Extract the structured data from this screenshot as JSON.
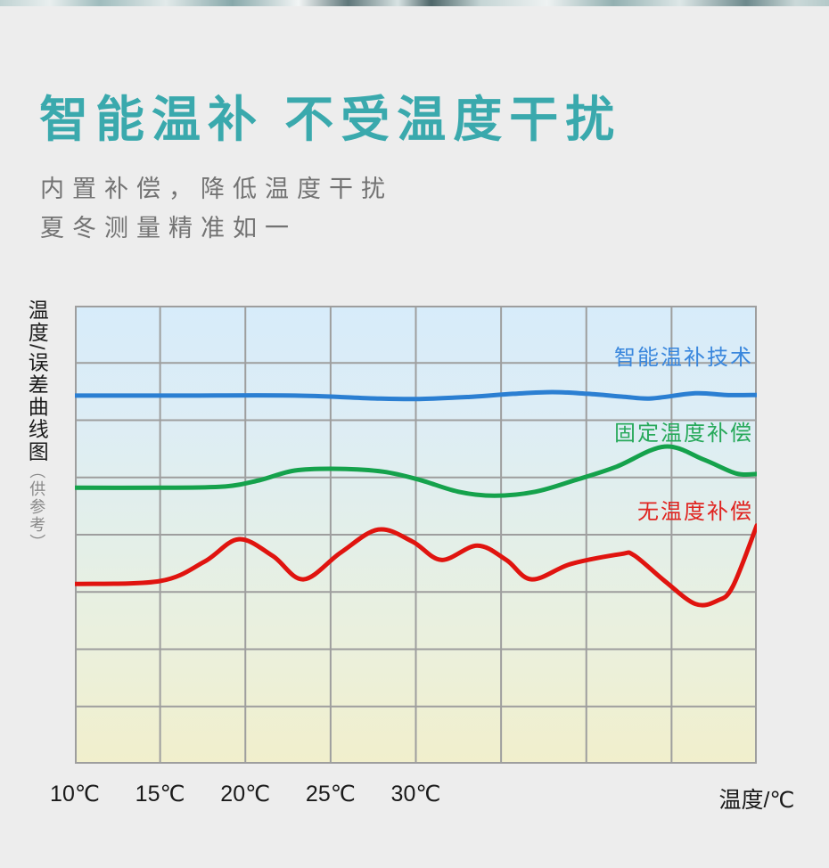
{
  "header": {
    "title": "智能温补 不受温度干扰",
    "title_color": "#3aa9ad",
    "subtitle_line1": "内置补偿，降低温度干扰",
    "subtitle_line2": "夏冬测量精准如一",
    "subtitle_color": "#737373"
  },
  "chart_data": {
    "type": "line",
    "title": "",
    "ylabel": "温度/误差曲线图",
    "ylabel_note": "（供参考）",
    "xlabel": "温度/℃",
    "x_tick_labels": [
      "10℃",
      "15℃",
      "20℃",
      "25℃",
      "30℃"
    ],
    "x_tick_values": [
      10,
      15,
      20,
      25,
      30
    ],
    "x_range": [
      10,
      50
    ],
    "y_range": [
      0,
      8
    ],
    "grid": {
      "cols": 8,
      "rows": 8,
      "color": "#9e9e9e",
      "line_width": 2,
      "on": true
    },
    "background_gradient": [
      "#d7ecfa",
      "#ddedf5",
      "#e3efe9",
      "#ebf0dc",
      "#f1efcc"
    ],
    "legend_position": "inside-right",
    "series": [
      {
        "name": "智能温补技术",
        "color": "#2b7fd2",
        "label_color": "#3a87dd",
        "points": [
          [
            10,
            6.43
          ],
          [
            16.1,
            6.43
          ],
          [
            22.9,
            6.43
          ],
          [
            27.6,
            6.38
          ],
          [
            30.2,
            6.37
          ],
          [
            33.3,
            6.41
          ],
          [
            35.7,
            6.46
          ],
          [
            38,
            6.49
          ],
          [
            40.1,
            6.46
          ],
          [
            42.2,
            6.41
          ],
          [
            43.8,
            6.38
          ],
          [
            46.4,
            6.47
          ],
          [
            48.2,
            6.44
          ],
          [
            50,
            6.44
          ]
        ]
      },
      {
        "name": "固定温度补偿",
        "color": "#15a24c",
        "label_color": "#27a95a",
        "points": [
          [
            10,
            4.82
          ],
          [
            15,
            4.82
          ],
          [
            18.7,
            4.84
          ],
          [
            20.8,
            4.95
          ],
          [
            22.9,
            5.12
          ],
          [
            25.5,
            5.15
          ],
          [
            28.1,
            5.1
          ],
          [
            30.2,
            4.96
          ],
          [
            32.5,
            4.75
          ],
          [
            34.6,
            4.68
          ],
          [
            37,
            4.75
          ],
          [
            39.3,
            4.95
          ],
          [
            41.7,
            5.18
          ],
          [
            44.6,
            5.54
          ],
          [
            46.9,
            5.31
          ],
          [
            48.8,
            5.07
          ],
          [
            50,
            5.06
          ]
        ]
      },
      {
        "name": "无温度补偿",
        "color": "#e0140f",
        "label_color": "#e02420",
        "points": [
          [
            10,
            3.14
          ],
          [
            15,
            3.19
          ],
          [
            17.6,
            3.53
          ],
          [
            19.6,
            3.92
          ],
          [
            21.6,
            3.63
          ],
          [
            23.4,
            3.22
          ],
          [
            25.6,
            3.69
          ],
          [
            27.8,
            4.09
          ],
          [
            29.8,
            3.88
          ],
          [
            31.5,
            3.56
          ],
          [
            33.6,
            3.81
          ],
          [
            35.3,
            3.56
          ],
          [
            36.8,
            3.22
          ],
          [
            39.1,
            3.49
          ],
          [
            42,
            3.66
          ],
          [
            42.8,
            3.64
          ],
          [
            44.6,
            3.19
          ],
          [
            46.4,
            2.79
          ],
          [
            47.7,
            2.85
          ],
          [
            48.6,
            3.1
          ],
          [
            50,
            4.16
          ]
        ]
      }
    ]
  }
}
